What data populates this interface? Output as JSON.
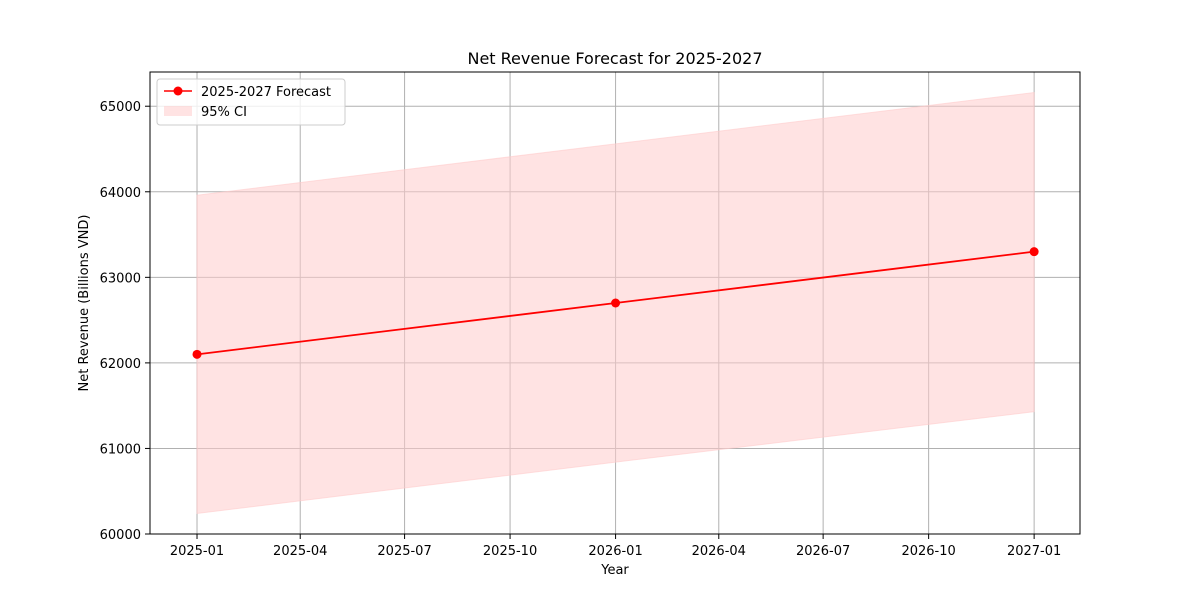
{
  "chart_data": {
    "type": "line",
    "title": "Net Revenue Forecast for 2025-2027",
    "xlabel": "Year",
    "ylabel": "Net Revenue (Billions VND)",
    "x_ticks": [
      "2025-01",
      "2025-04",
      "2025-07",
      "2025-10",
      "2026-01",
      "2026-04",
      "2026-07",
      "2026-10",
      "2027-01"
    ],
    "y_ticks": [
      60000,
      61000,
      62000,
      63000,
      64000,
      65000
    ],
    "xlim": [
      "2024-11-21",
      "2027-02-10"
    ],
    "ylim": [
      60000,
      65400
    ],
    "grid": true,
    "legend_position": "top-left",
    "series": [
      {
        "name": "2025-2027 Forecast",
        "color": "#ff0000",
        "marker": "circle",
        "x": [
          "2025-01-01",
          "2026-01-01",
          "2027-01-01"
        ],
        "values": [
          62100,
          62700,
          63300
        ]
      }
    ],
    "confidence_band": {
      "name": "95% CI",
      "color": "#ffcccc",
      "x": [
        "2025-01-01",
        "2026-01-01",
        "2027-01-01"
      ],
      "lower": [
        60240,
        60840,
        61430
      ],
      "upper": [
        63960,
        64560,
        65160
      ]
    }
  }
}
